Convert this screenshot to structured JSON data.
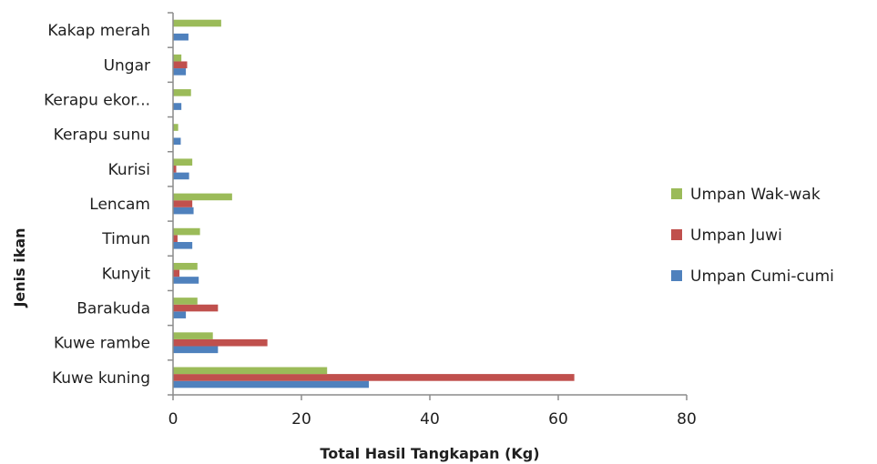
{
  "chart_data": {
    "type": "bar",
    "orientation": "horizontal",
    "categories": [
      "Kuwe kuning",
      "Kuwe rambe",
      "Barakuda",
      "Kunyit",
      "Timun",
      "Lencam",
      "Kurisi",
      "Kerapu sunu",
      "Kerapu ekor...",
      "Ungar",
      "Kakap merah"
    ],
    "series": [
      {
        "name": "Umpan Cumi-cumi",
        "color": "#4f81bd",
        "values": [
          30.5,
          7,
          2,
          4,
          3,
          3.2,
          2.5,
          1.2,
          1.3,
          2,
          2.4
        ]
      },
      {
        "name": "Umpan Juwi",
        "color": "#c0504d",
        "values": [
          62.5,
          14.7,
          7,
          1,
          0.7,
          3,
          0.5,
          0,
          0,
          2.2,
          0
        ]
      },
      {
        "name": "Umpan Wak-wak",
        "color": "#9bbb59",
        "values": [
          24,
          6.2,
          3.8,
          3.8,
          4.2,
          9.2,
          3,
          0.8,
          2.8,
          1.3,
          7.5
        ]
      }
    ],
    "xlabel": "Total Hasil Tangkapan  (Kg)",
    "ylabel": "Jenis ikan",
    "xlim": [
      0,
      80
    ],
    "xticks": [
      "0",
      "20",
      "40",
      "60",
      "80"
    ],
    "grid": false,
    "legend_position": "right"
  }
}
